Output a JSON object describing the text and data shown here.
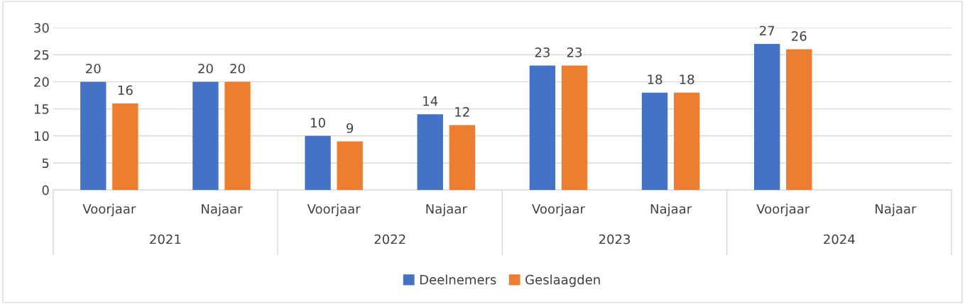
{
  "chart_data": {
    "type": "bar",
    "categories": [
      "Voorjaar",
      "Najaar",
      "Voorjaar",
      "Najaar",
      "Voorjaar",
      "Najaar",
      "Voorjaar",
      "Najaar"
    ],
    "series": [
      {
        "name": "Deelnemers",
        "color": "#4472c4",
        "values": [
          20,
          20,
          10,
          14,
          23,
          18,
          27,
          null
        ]
      },
      {
        "name": "Geslaagden",
        "color": "#ed7d31",
        "values": [
          16,
          20,
          9,
          12,
          23,
          18,
          26,
          null
        ]
      }
    ],
    "annotations": [
      "2021",
      "2022",
      "2023",
      "2024"
    ],
    "ylim": [
      0,
      30
    ],
    "yticks": [
      0,
      5,
      10,
      15,
      20,
      25,
      30
    ],
    "grid": "y",
    "legend": "bottom",
    "data_labels": true
  }
}
